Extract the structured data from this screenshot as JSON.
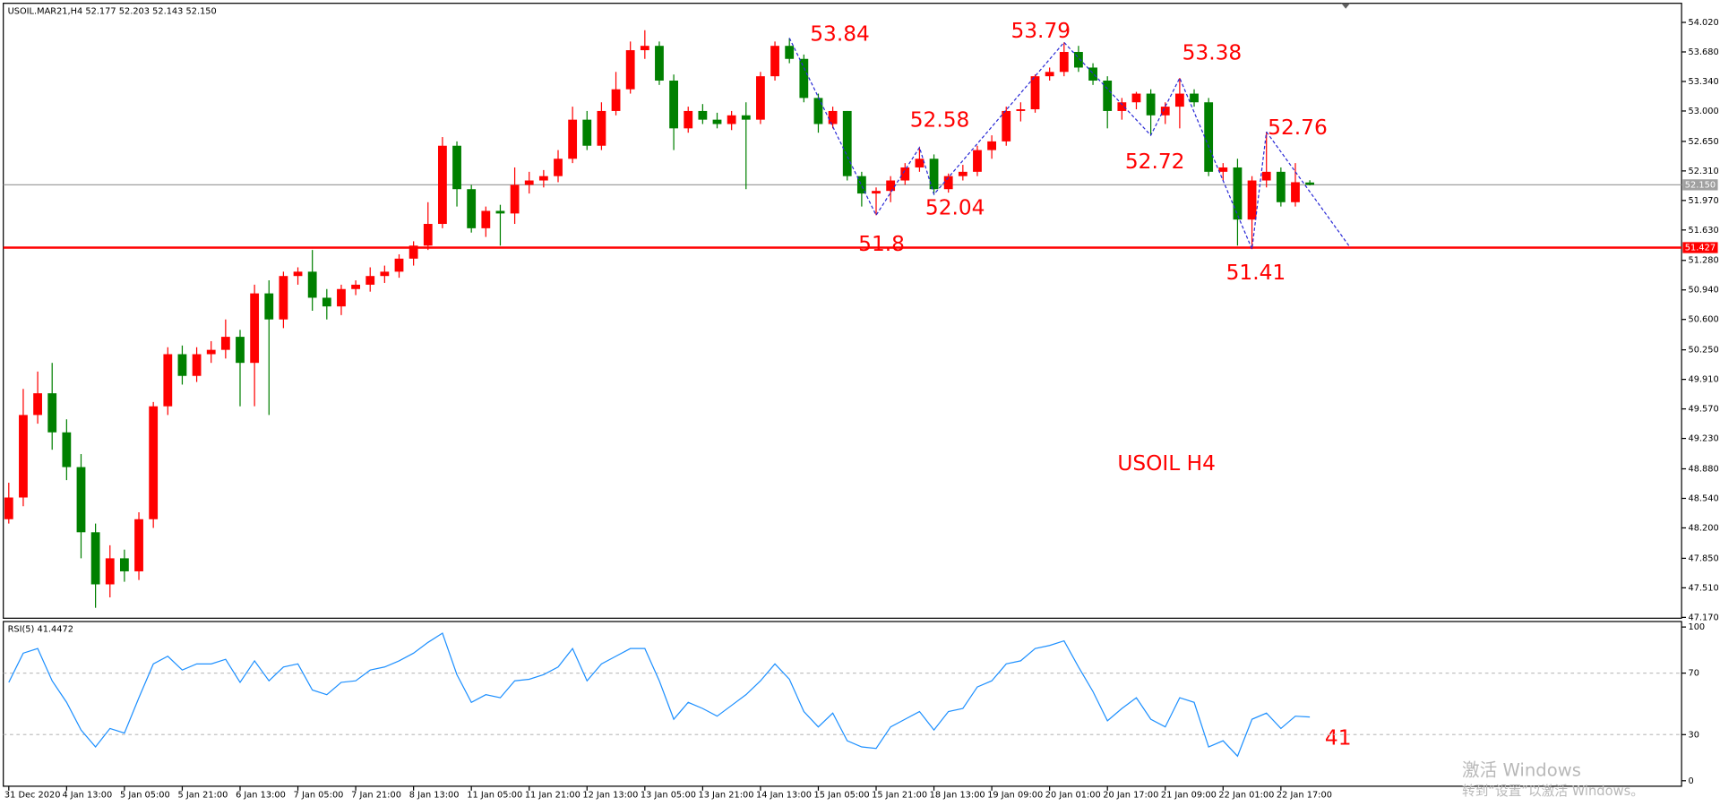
{
  "chart_data": [
    {
      "type": "candlestick",
      "title": "USOIL.MAR21,H4  52.177 52.203 52.143 52.150",
      "categories": [
        "31 Dec 2020",
        null,
        null,
        null,
        "4 Jan 13:00",
        null,
        null,
        null,
        "5 Jan 05:00",
        null,
        null,
        null,
        "5 Jan 21:00",
        null,
        null,
        null,
        "6 Jan 13:00",
        null,
        null,
        null,
        "7 Jan 05:00",
        null,
        null,
        null,
        "7 Jan 21:00",
        null,
        null,
        null,
        "8 Jan 13:00",
        null,
        null,
        null,
        "11 Jan 05:00",
        null,
        null,
        null,
        "11 Jan 21:00",
        null,
        null,
        null,
        "12 Jan 13:00",
        null,
        null,
        null,
        "13 Jan 05:00",
        null,
        null,
        null,
        "13 Jan 21:00",
        null,
        null,
        null,
        "14 Jan 13:00",
        null,
        null,
        null,
        "15 Jan 05:00",
        null,
        null,
        null,
        "15 Jan 21:00",
        null,
        null,
        null,
        "18 Jan 13:00",
        null,
        null,
        null,
        "19 Jan 09:00",
        null,
        null,
        null,
        "20 Jan 01:00",
        null,
        null,
        null,
        "20 Jan 17:00",
        null,
        null,
        null,
        "21 Jan 09:00",
        null,
        null,
        null,
        "22 Jan 01:00",
        null,
        null,
        null,
        "22 Jan 17:00",
        null,
        null
      ],
      "open": [
        48.3,
        48.55,
        49.5,
        49.75,
        49.3,
        48.9,
        48.15,
        47.55,
        47.85,
        47.7,
        48.3,
        49.6,
        50.2,
        49.95,
        50.2,
        50.25,
        50.4,
        50.1,
        50.9,
        50.6,
        51.1,
        51.15,
        50.85,
        50.75,
        50.95,
        51.0,
        51.1,
        51.15,
        51.3,
        51.45,
        51.7,
        52.6,
        52.1,
        51.65,
        51.85,
        51.82,
        52.15,
        52.2,
        52.25,
        52.45,
        52.9,
        52.6,
        53.0,
        53.25,
        53.7,
        53.75,
        53.35,
        52.8,
        53.0,
        52.9,
        52.85,
        52.95,
        52.9,
        53.4,
        53.75,
        53.6,
        53.15,
        52.85,
        53.0,
        52.25,
        52.05,
        52.08,
        52.2,
        52.35,
        52.45,
        52.1,
        52.25,
        52.3,
        52.55,
        52.65,
        53.0,
        53.02,
        53.4,
        53.45,
        53.68,
        53.5,
        53.35,
        53.0,
        53.1,
        53.2,
        52.95,
        53.05,
        53.2,
        53.1,
        52.3,
        52.35,
        51.75,
        52.2,
        52.3,
        51.95,
        52.177
      ],
      "high": [
        48.72,
        49.8,
        50.0,
        50.1,
        49.45,
        49.05,
        48.25,
        48.0,
        47.95,
        48.38,
        49.65,
        50.28,
        50.3,
        50.28,
        50.35,
        50.6,
        50.48,
        51.0,
        51.05,
        51.15,
        51.2,
        51.4,
        50.95,
        51.0,
        51.05,
        51.2,
        51.22,
        51.35,
        51.5,
        51.95,
        52.7,
        52.65,
        52.15,
        51.9,
        51.92,
        52.35,
        52.3,
        52.32,
        52.55,
        53.05,
        53.0,
        53.1,
        53.45,
        53.8,
        53.93,
        53.8,
        53.42,
        53.05,
        53.08,
        52.98,
        53.0,
        53.1,
        53.45,
        53.8,
        53.84,
        53.65,
        53.2,
        53.05,
        53.0,
        52.3,
        52.12,
        52.25,
        52.4,
        52.58,
        52.5,
        52.28,
        52.38,
        52.6,
        52.72,
        53.05,
        53.1,
        53.42,
        53.5,
        53.79,
        53.75,
        53.55,
        53.4,
        53.15,
        53.22,
        53.25,
        53.1,
        53.38,
        53.25,
        53.15,
        52.4,
        52.45,
        52.25,
        52.76,
        52.35,
        52.4,
        52.203
      ],
      "low": [
        48.25,
        48.45,
        49.4,
        49.1,
        48.75,
        47.85,
        47.28,
        47.4,
        47.58,
        47.6,
        48.2,
        49.5,
        49.85,
        49.88,
        50.1,
        50.15,
        49.6,
        49.6,
        49.5,
        50.5,
        51.0,
        50.7,
        50.6,
        50.65,
        50.88,
        50.92,
        51.02,
        51.08,
        51.22,
        51.4,
        51.65,
        51.9,
        51.6,
        51.55,
        51.45,
        51.7,
        52.05,
        52.12,
        52.18,
        52.4,
        52.55,
        52.55,
        52.95,
        53.2,
        53.6,
        53.3,
        52.55,
        52.75,
        52.85,
        52.8,
        52.78,
        52.1,
        52.85,
        53.35,
        53.55,
        53.1,
        52.75,
        52.8,
        52.2,
        51.9,
        51.8,
        51.95,
        52.15,
        52.3,
        52.04,
        52.06,
        52.2,
        52.25,
        52.45,
        52.6,
        52.88,
        52.98,
        53.35,
        53.4,
        53.45,
        53.3,
        52.8,
        52.9,
        53.02,
        52.72,
        52.85,
        52.8,
        53.05,
        52.25,
        52.2,
        51.45,
        51.41,
        52.12,
        51.9,
        51.9,
        52.143
      ],
      "close": [
        48.55,
        49.5,
        49.75,
        49.3,
        48.9,
        48.15,
        47.55,
        47.85,
        47.7,
        48.3,
        49.6,
        50.2,
        49.95,
        50.2,
        50.25,
        50.4,
        50.1,
        50.9,
        50.6,
        51.1,
        51.15,
        50.85,
        50.75,
        50.95,
        51.0,
        51.1,
        51.15,
        51.3,
        51.45,
        51.7,
        52.6,
        52.1,
        51.65,
        51.85,
        51.82,
        52.15,
        52.2,
        52.25,
        52.45,
        52.9,
        52.6,
        53.0,
        53.25,
        53.7,
        53.75,
        53.35,
        52.8,
        53.0,
        52.9,
        52.85,
        52.95,
        52.9,
        53.4,
        53.75,
        53.6,
        53.15,
        52.85,
        53.0,
        52.25,
        52.05,
        52.08,
        52.2,
        52.35,
        52.45,
        52.1,
        52.25,
        52.3,
        52.55,
        52.65,
        53.0,
        53.02,
        53.4,
        53.45,
        53.68,
        53.5,
        53.35,
        53.0,
        53.1,
        53.2,
        52.95,
        53.05,
        53.2,
        53.1,
        52.3,
        52.35,
        51.75,
        52.2,
        52.3,
        51.95,
        52.18,
        52.15
      ],
      "up_color": "#ff0000",
      "down_color": "#008000",
      "ylim": [
        47.16,
        54.24
      ],
      "yticks": [
        {
          "value": 54.02,
          "label": "54.020"
        },
        {
          "value": 53.68,
          "label": "53.680"
        },
        {
          "value": 53.34,
          "label": "53.340"
        },
        {
          "value": 53.0,
          "label": "53.000"
        },
        {
          "value": 52.65,
          "label": "52.650"
        },
        {
          "value": 52.31,
          "label": "52.310"
        },
        {
          "value": 51.97,
          "label": "51.970"
        },
        {
          "value": 51.63,
          "label": "51.630"
        },
        {
          "value": 51.28,
          "label": "51.280"
        },
        {
          "value": 50.94,
          "label": "50.940"
        },
        {
          "value": 50.6,
          "label": "50.600"
        },
        {
          "value": 50.25,
          "label": "50.250"
        },
        {
          "value": 49.91,
          "label": "49.910"
        },
        {
          "value": 49.57,
          "label": "49.570"
        },
        {
          "value": 49.23,
          "label": "49.230"
        },
        {
          "value": 48.88,
          "label": "48.880"
        },
        {
          "value": 48.54,
          "label": "48.540"
        },
        {
          "value": 48.2,
          "label": "48.200"
        },
        {
          "value": 47.85,
          "label": "47.850"
        },
        {
          "value": 47.51,
          "label": "47.510"
        },
        {
          "value": 47.17,
          "label": "47.170"
        }
      ],
      "levels": [
        {
          "value": 52.15,
          "label": "52.150",
          "color": "#a0a0a0"
        },
        {
          "value": 51.427,
          "label": "51.427",
          "color": "#ff0000"
        }
      ],
      "zigzag": {
        "x": [
          54,
          60,
          63,
          64,
          73,
          79,
          81,
          86,
          87
        ],
        "values": [
          53.84,
          51.8,
          52.58,
          52.04,
          53.79,
          52.72,
          53.38,
          51.41,
          52.76
        ],
        "color": "#2b2bd6"
      },
      "annotations": [
        "USOIL H4"
      ]
    },
    {
      "type": "line",
      "title": "RSI(5) 41.4472",
      "values": [
        64,
        83,
        86,
        65,
        51,
        33,
        22,
        34,
        31,
        54,
        76,
        81,
        72,
        76,
        76,
        79,
        64,
        78,
        65,
        74,
        76,
        59,
        56,
        64,
        65,
        72,
        74,
        78,
        83,
        90,
        96,
        69,
        51,
        56,
        54,
        65,
        66,
        69,
        74,
        86,
        65,
        76,
        81,
        86,
        86,
        65,
        40,
        51,
        47,
        42,
        49,
        56,
        65,
        76,
        66,
        45,
        35,
        44,
        26,
        22,
        21,
        35,
        40,
        45,
        33,
        45,
        47,
        61,
        65,
        76,
        78,
        86,
        88,
        91,
        74,
        58,
        39,
        47,
        54,
        40,
        35,
        54,
        51,
        22,
        26,
        16,
        40,
        44,
        34,
        42,
        41.4472
      ],
      "color": "#1e90ff",
      "ylim": [
        0,
        100
      ],
      "yticks": [
        0,
        30,
        70,
        100
      ],
      "annotations": [
        "41"
      ]
    }
  ],
  "watermark": [
    "激活 Windows",
    "转到“设置”以激活 Windows。"
  ]
}
